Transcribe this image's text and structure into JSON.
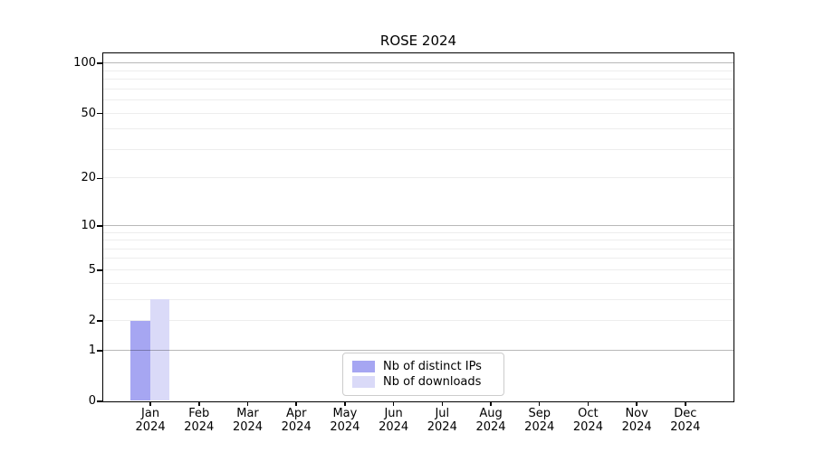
{
  "title": "ROSE 2024",
  "chart_data": {
    "type": "bar",
    "title": "ROSE 2024",
    "categories": [
      "Jan",
      "Feb",
      "Mar",
      "Apr",
      "May",
      "Jun",
      "Jul",
      "Aug",
      "Sep",
      "Oct",
      "Nov",
      "Dec"
    ],
    "category_year": "2024",
    "series": [
      {
        "name": "Nb of distinct IPs",
        "color": "#a6a6f2",
        "values": [
          2,
          0,
          0,
          0,
          0,
          0,
          0,
          0,
          0,
          0,
          0,
          0
        ]
      },
      {
        "name": "Nb of downloads",
        "color": "#dadaf8",
        "values": [
          3,
          0,
          0,
          0,
          0,
          0,
          0,
          0,
          0,
          0,
          0,
          0
        ]
      }
    ],
    "y_axis": {
      "scale": "log1p",
      "ticks": [
        0,
        1,
        2,
        5,
        10,
        20,
        50,
        100
      ],
      "major_gridlines": [
        1,
        10,
        100
      ],
      "minor_gridlines": [
        2,
        3,
        4,
        5,
        6,
        7,
        8,
        9,
        20,
        30,
        40,
        50,
        60,
        70,
        80,
        90
      ],
      "range": [
        0,
        115
      ]
    },
    "x_axis": {
      "lim": [
        -0.97,
        11.99
      ]
    },
    "bar_width_fraction": 0.4,
    "legend_position": "lower center",
    "grid": true,
    "colors": {
      "spine": "#000000",
      "major_grid": "#b3b3b3",
      "minor_grid": "#ededed",
      "background": "#ffffff"
    }
  },
  "legend": {
    "items": [
      {
        "label": "Nb of distinct IPs"
      },
      {
        "label": "Nb of downloads"
      }
    ]
  }
}
